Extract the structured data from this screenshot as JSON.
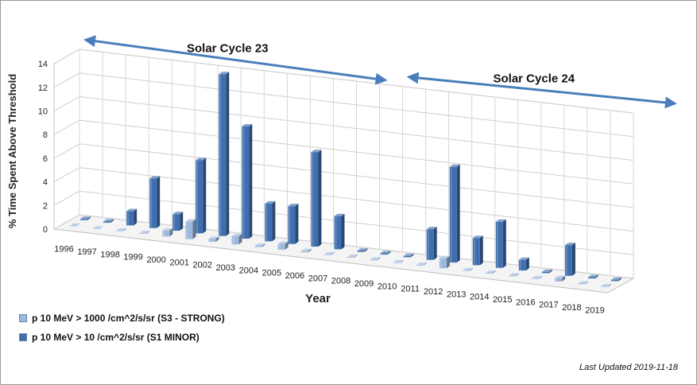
{
  "chart_data": {
    "type": "bar",
    "subtype": "3d-column",
    "ylabel": "% Time Spent Above Threshold",
    "xlabel": "Year",
    "ylim": [
      0,
      14
    ],
    "yticks": [
      "0",
      "2",
      "4",
      "6",
      "8",
      "10",
      "12",
      "14"
    ],
    "categories": [
      "1996",
      "1997",
      "1998",
      "1999",
      "2000",
      "2001",
      "2002",
      "2003",
      "2004",
      "2005",
      "2006",
      "2007",
      "2008",
      "2009",
      "2010",
      "2011",
      "2012",
      "2013",
      "2014",
      "2015",
      "2016",
      "2017",
      "2018",
      "2019"
    ],
    "series": [
      {
        "name": "p 10 MeV > 1000 /cm^2/s/sr (S3 - STRONG)",
        "color": "#9db8de",
        "values": [
          0,
          0,
          0.05,
          0.05,
          0.5,
          1.5,
          0.25,
          0.7,
          0.1,
          0.5,
          0.1,
          0.05,
          0.05,
          0.05,
          0.05,
          0.05,
          0.85,
          0.05,
          0.05,
          0.05,
          0.05,
          0.3,
          0.05,
          0.05
        ]
      },
      {
        "name": "p 10 MeV > 10 /cm^2/s/sr (S1 MINOR)",
        "color": "#3f6fae",
        "values": [
          0.1,
          0.1,
          1.2,
          4.2,
          1.4,
          6.2,
          13.7,
          9.5,
          3.2,
          3.2,
          8.0,
          2.8,
          0.1,
          0.1,
          0.1,
          2.6,
          8.1,
          2.3,
          3.9,
          0.9,
          0.1,
          2.6,
          0.1,
          0.1
        ]
      }
    ],
    "annotations": [
      {
        "label": "Solar Cycle 23",
        "from": "1996",
        "to": "2009"
      },
      {
        "label": "Solar Cycle 24",
        "from": "2010",
        "to": "2019"
      }
    ],
    "arrow_color": "#4a7ebb",
    "grid": true,
    "legend_position": "bottom-left"
  },
  "footer": {
    "last_updated": "Last Updated 2019-11-18"
  }
}
